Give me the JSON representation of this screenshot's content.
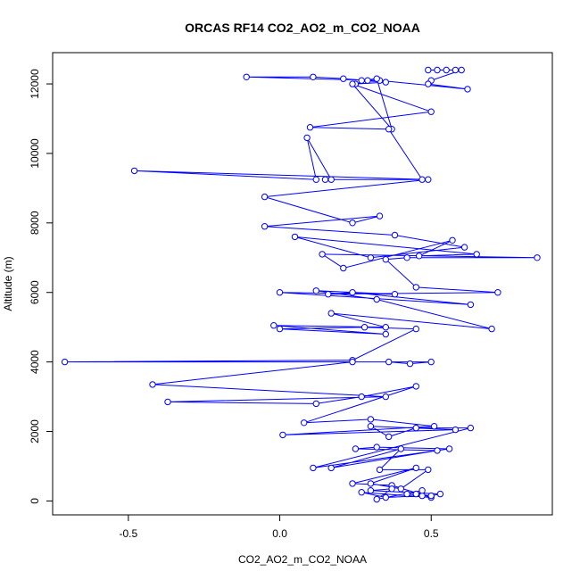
{
  "chart_data": {
    "type": "line",
    "title": "ORCAS RF14 CO2_AO2_m_CO2_NOAA",
    "xlabel": "CO2_AO2_m_CO2_NOAA",
    "ylabel": "Altitude (m)",
    "xlim": [
      -0.75,
      0.9
    ],
    "ylim": [
      -400,
      12900
    ],
    "xticks": [
      -0.5,
      0.0,
      0.5
    ],
    "xtick_labels": [
      "-0.5",
      "0.0",
      "0.5"
    ],
    "yticks": [
      0,
      2000,
      4000,
      6000,
      8000,
      10000,
      12000
    ],
    "ytick_labels": [
      "0",
      "2000",
      "4000",
      "6000",
      "8000",
      "10000",
      "12000"
    ],
    "grid": false,
    "marker": "open-circle",
    "color": "#0000ff",
    "series": [
      {
        "x": [
          0.49,
          0.52,
          0.55,
          0.58,
          0.6,
          0.5,
          0.49,
          0.62,
          0.33,
          -0.11,
          0.11,
          0.21,
          0.29,
          0.25,
          0.35,
          0.27,
          0.32,
          0.37,
          0.24,
          0.5,
          0.1,
          0.36,
          0.47,
          0.15,
          0.17,
          0.09,
          0.12,
          -0.48,
          0.49,
          -0.05,
          0.24,
          0.33,
          -0.05,
          0.38,
          0.61,
          0.3,
          0.05,
          0.65,
          0.46,
          0.57,
          0.21,
          0.14,
          0.85,
          0.42,
          0.35,
          0.45,
          0.72,
          0.16,
          0.24,
          0.63,
          0.0,
          0.38,
          0.12,
          0.32,
          0.7,
          0.17,
          0.35,
          -0.02,
          0.35,
          0.0,
          0.28,
          0.45,
          0.24,
          -0.71,
          0.5,
          0.43,
          0.36,
          0.24,
          -0.42,
          0.35,
          -0.37,
          0.12,
          0.27,
          0.45,
          0.08,
          0.3,
          0.51,
          0.01,
          0.58,
          0.3,
          0.36,
          0.45,
          0.63,
          0.11,
          0.56,
          0.32,
          0.25,
          0.52,
          0.17,
          0.4,
          0.33,
          0.49,
          0.4,
          0.3,
          0.45,
          0.24,
          0.37,
          0.5,
          0.27,
          0.35,
          0.47,
          0.42,
          0.47,
          0.32,
          0.37,
          0.3,
          0.53,
          0.5,
          0.45
        ],
        "y": [
          12400,
          12400,
          12400,
          12400,
          12400,
          12100,
          12000,
          11850,
          12100,
          12200,
          12200,
          12150,
          12100,
          12000,
          12050,
          12100,
          12150,
          10700,
          12000,
          11200,
          10750,
          10700,
          9250,
          9250,
          9250,
          10450,
          9250,
          9500,
          9250,
          8750,
          8000,
          8200,
          7900,
          7650,
          7300,
          7000,
          7600,
          7100,
          7050,
          7500,
          6700,
          7100,
          7000,
          7000,
          6950,
          6150,
          6000,
          5950,
          6000,
          5650,
          6000,
          5950,
          6050,
          5800,
          4950,
          5400,
          5000,
          5050,
          4800,
          4950,
          5000,
          4950,
          4050,
          4000,
          4000,
          3950,
          4000,
          4000,
          3350,
          3000,
          2850,
          2800,
          3000,
          3300,
          2250,
          2350,
          2150,
          1900,
          2050,
          2150,
          1850,
          2100,
          2100,
          950,
          1500,
          1550,
          1500,
          1450,
          950,
          1500,
          900,
          900,
          350,
          500,
          950,
          500,
          450,
          100,
          250,
          100,
          150,
          200,
          300,
          50,
          350,
          300,
          200,
          150,
          200
        ]
      }
    ]
  }
}
